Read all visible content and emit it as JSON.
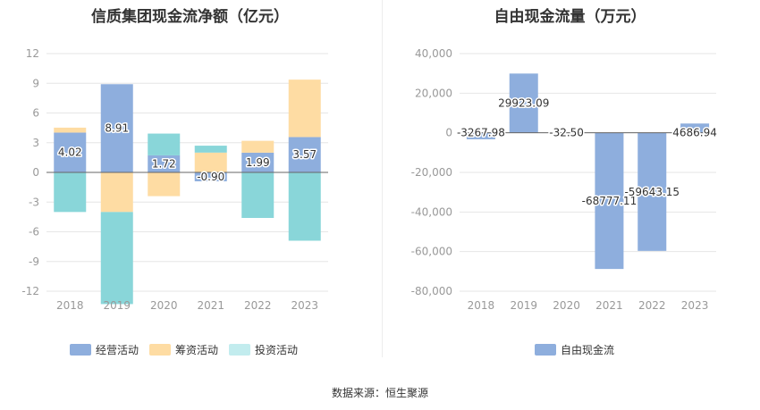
{
  "source_label": "数据来源：恒生聚源",
  "colors": {
    "operating": "#8eaedd",
    "financing": "#fedca3",
    "investing": "#89d6d9",
    "fcf": "#8eaedd"
  },
  "chart_data": [
    {
      "type": "bar",
      "stacked": true,
      "title": "信质集团现金流净额（亿元）",
      "categories": [
        "2018",
        "2019",
        "2020",
        "2021",
        "2022",
        "2023"
      ],
      "ylim": [
        -12,
        12
      ],
      "yticks": [
        12,
        9,
        6,
        3,
        0,
        -3,
        -6,
        -9,
        -12
      ],
      "grid": true,
      "legend_position": "bottom",
      "series": [
        {
          "name": "经营活动",
          "color": "#8eaedd",
          "values": [
            4.02,
            8.91,
            1.72,
            -0.9,
            1.99,
            3.57
          ]
        },
        {
          "name": "筹资活动",
          "color": "#fedca3",
          "values": [
            0.5,
            -4.0,
            -2.4,
            2.0,
            1.2,
            5.8
          ]
        },
        {
          "name": "投资活动",
          "color": "#89d6d9",
          "values": [
            -4.0,
            -9.3,
            2.2,
            0.7,
            -4.6,
            -6.9
          ]
        }
      ],
      "data_labels": [
        "4.02",
        "8.91",
        "1.72",
        "-0.90",
        "1.99",
        "3.57"
      ]
    },
    {
      "type": "bar",
      "title": "自由现金流量（万元）",
      "categories": [
        "2018",
        "2019",
        "2020",
        "2021",
        "2022",
        "2023"
      ],
      "ylim": [
        -80000,
        40000
      ],
      "yticks": [
        40000,
        20000,
        0,
        -20000,
        -40000,
        -60000,
        -80000
      ],
      "ytick_labels": [
        "40,000",
        "20,000",
        "0",
        "-20,000",
        "-40,000",
        "-60,000",
        "-80,000"
      ],
      "grid": true,
      "legend_position": "bottom",
      "series": [
        {
          "name": "自由现金流",
          "color": "#8eaedd",
          "values": [
            -3267.98,
            29923.09,
            -32.5,
            -68777.11,
            -59643.15,
            4686.94
          ]
        }
      ],
      "data_labels": [
        "-3267.98",
        "29923.09",
        "-32.50",
        "-68777.11",
        "-59643.15",
        "4686.94"
      ]
    }
  ]
}
